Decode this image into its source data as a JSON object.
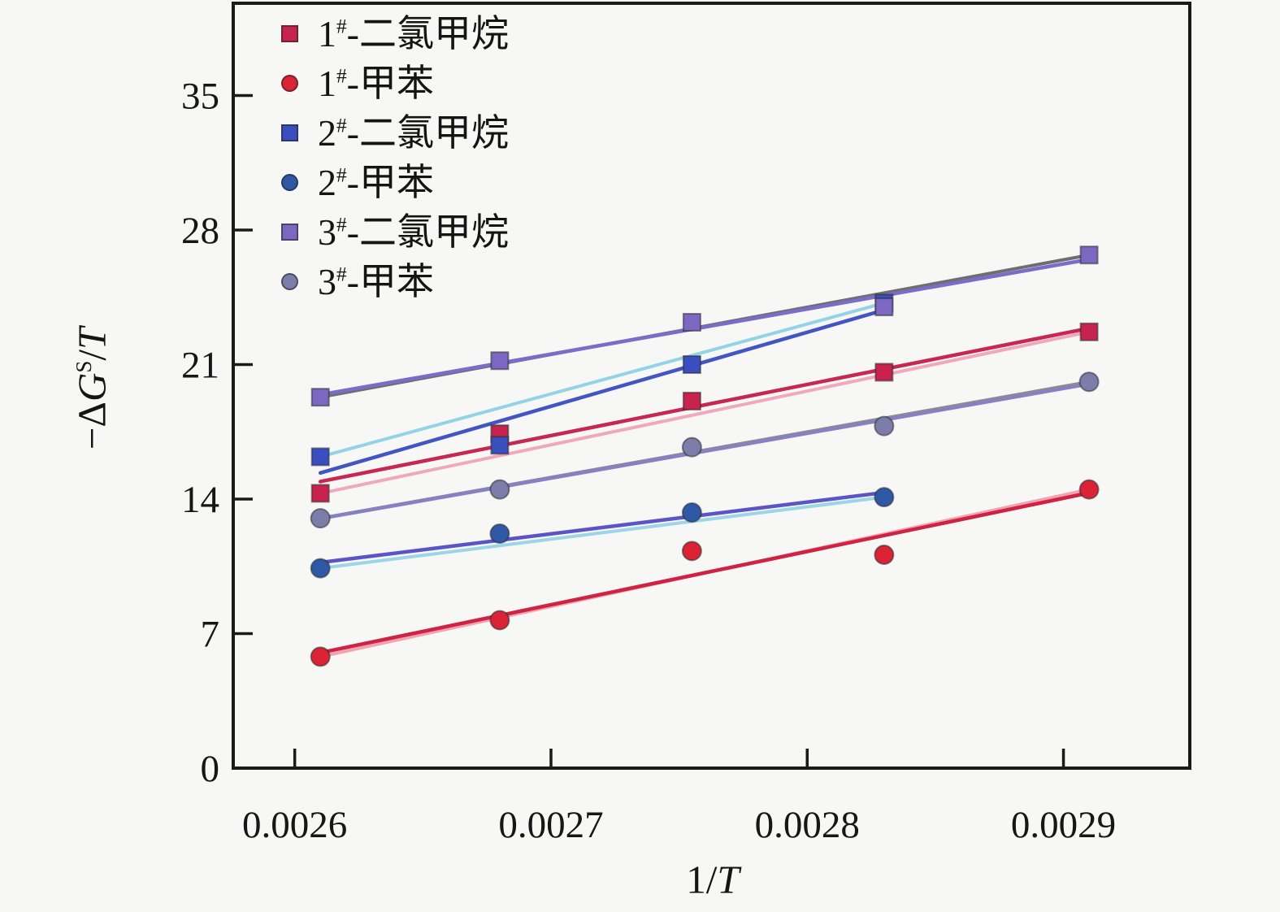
{
  "figure": {
    "background": "#f7f7f6",
    "axis_color": "#1a1a1a",
    "tick_label_color": "#161616"
  },
  "chart_data": {
    "type": "scatter",
    "title": "",
    "xlabel": "1/T",
    "ylabel": "-ΔG^S/T",
    "xlabel_parts": {
      "pre": "1/",
      "T": "T"
    },
    "ylabel_parts": {
      "pre": "−Δ",
      "G": "G",
      "sup": "S",
      "slash": "/",
      "T": "T"
    },
    "xlim": [
      0.002576,
      0.0029493
    ],
    "ylim": [
      0,
      39.8
    ],
    "x_ticks": [
      0.0026,
      0.0027,
      0.0028,
      0.0029
    ],
    "x_tick_labels": [
      "0.0026",
      "0.0027",
      "0.0028",
      "0.0029"
    ],
    "y_ticks": [
      0,
      7,
      14,
      21,
      28,
      35
    ],
    "y_tick_labels": [
      "0",
      "7",
      "14",
      "21",
      "28",
      "35"
    ],
    "grid": false,
    "legend_position": "upper-left-inside",
    "series": [
      {
        "name": "1#-二氯甲烷",
        "marker": "square",
        "marker_color": "#c8234f",
        "line_color": "#c62753",
        "line2_color": "#f0a8bd",
        "x": [
          0.00261,
          0.00268,
          0.002755,
          0.00283,
          0.00291
        ],
        "y": [
          14.3,
          17.4,
          19.1,
          20.6,
          22.7
        ]
      },
      {
        "name": "1#-甲苯",
        "marker": "circle",
        "marker_color": "#dc2336",
        "line_color": "#ce2342",
        "line2_color": "#f2a3b0",
        "x": [
          0.00261,
          0.00268,
          0.002755,
          0.00283,
          0.00291
        ],
        "y": [
          5.8,
          7.7,
          11.3,
          11.1,
          14.5
        ]
      },
      {
        "name": "2#-二氯甲烷",
        "marker": "square",
        "marker_color": "#3b4ec0",
        "line_color": "#4355c5",
        "line2_color": "#92d4e6",
        "x": [
          0.00261,
          0.00268,
          0.002755,
          0.00283
        ],
        "y": [
          16.2,
          16.8,
          21.0,
          24.2
        ]
      },
      {
        "name": "2#-甲苯",
        "marker": "circle",
        "marker_color": "#2f58a7",
        "line_color": "#5a54c6",
        "line2_color": "#9bd6e8",
        "x": [
          0.00261,
          0.00268,
          0.002755,
          0.00283
        ],
        "y": [
          10.4,
          12.2,
          13.3,
          14.1
        ]
      },
      {
        "name": "3#-二氯甲烷",
        "marker": "square",
        "marker_color": "#7c68c2",
        "line_color": "#7a6cc9",
        "line2_color": "#6e6e6e",
        "x": [
          0.00261,
          0.00268,
          0.002755,
          0.00283,
          0.00291
        ],
        "y": [
          19.3,
          21.2,
          23.2,
          24.0,
          26.7
        ]
      },
      {
        "name": "3#-甲苯",
        "marker": "circle",
        "marker_color": "#7d7dab",
        "line_color": "#8780c2",
        "line2_color": "#8c8c8c",
        "x": [
          0.00261,
          0.00268,
          0.002755,
          0.00283,
          0.00291
        ],
        "y": [
          13.0,
          14.5,
          16.7,
          17.8,
          20.1
        ]
      }
    ]
  }
}
